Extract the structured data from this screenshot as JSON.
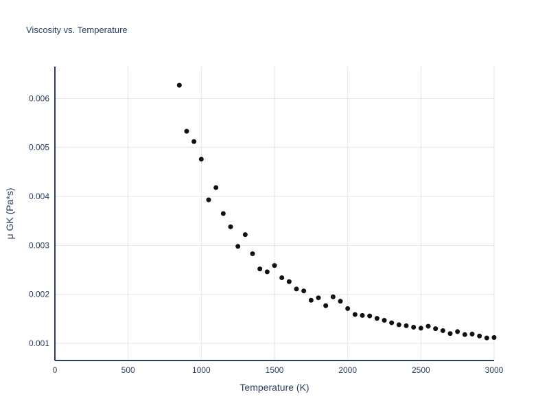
{
  "chart_data": {
    "type": "scatter",
    "title": "Viscosity vs. Temperature",
    "xlabel": "Temperature (K)",
    "ylabel": "μ GK (Pa*s)",
    "xlim": [
      0,
      3000
    ],
    "ylim": [
      0.00065,
      0.00665
    ],
    "x_ticks": [
      0,
      500,
      1000,
      1500,
      2000,
      2500,
      3000
    ],
    "y_ticks": [
      0.001,
      0.002,
      0.003,
      0.004,
      0.005,
      0.006
    ],
    "grid": true,
    "legend": "none",
    "series_name": "viscosity",
    "x": [
      850,
      900,
      950,
      1000,
      1050,
      1100,
      1150,
      1200,
      1250,
      1300,
      1350,
      1400,
      1450,
      1500,
      1550,
      1600,
      1650,
      1700,
      1750,
      1800,
      1850,
      1900,
      1950,
      2000,
      2050,
      2100,
      2150,
      2200,
      2250,
      2300,
      2350,
      2400,
      2450,
      2500,
      2550,
      2600,
      2650,
      2700,
      2750,
      2800,
      2850,
      2900,
      2950,
      3000
    ],
    "y": [
      0.00627,
      0.00533,
      0.00512,
      0.00476,
      0.00393,
      0.00418,
      0.00365,
      0.00338,
      0.00298,
      0.00322,
      0.00283,
      0.00252,
      0.00246,
      0.00259,
      0.00234,
      0.00226,
      0.00211,
      0.00207,
      0.00188,
      0.00193,
      0.00177,
      0.00195,
      0.00186,
      0.00171,
      0.00159,
      0.00157,
      0.00156,
      0.00151,
      0.00147,
      0.00142,
      0.00138,
      0.00136,
      0.00133,
      0.00131,
      0.00135,
      0.0013,
      0.00126,
      0.0012,
      0.00124,
      0.00118,
      0.00119,
      0.00115,
      0.00111,
      0.00112
    ],
    "colors": {
      "marker": "#111111",
      "grid": "#e6e6e6",
      "axis": "#2a3f5f",
      "tick_label": "#2a3f5f",
      "title": "#2a3f5f",
      "background": "#ffffff"
    }
  }
}
